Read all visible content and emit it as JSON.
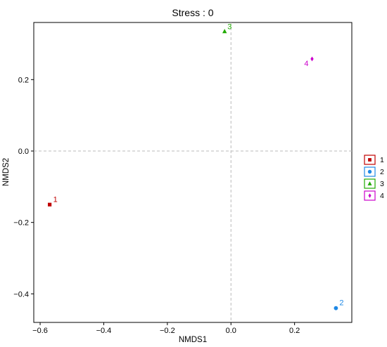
{
  "chart_data": {
    "type": "scatter",
    "title": "Stress : 0",
    "xlabel": "NMDS1",
    "ylabel": "NMDS2",
    "xlim": [
      -0.62,
      0.38
    ],
    "ylim": [
      -0.48,
      0.36
    ],
    "xticks": [
      -0.6,
      -0.4,
      -0.2,
      0.0,
      0.2
    ],
    "xtick_labels": [
      "−0.6",
      "−0.4",
      "−0.2",
      "0.0",
      "0.2"
    ],
    "yticks": [
      -0.4,
      -0.2,
      0.0,
      0.2
    ],
    "ytick_labels": [
      "−0.4",
      "−0.2",
      "0.0",
      "0.2"
    ],
    "grid": false,
    "reference_lines": {
      "x": 0,
      "y": 0,
      "style": "dashed",
      "color": "#bbbbbb"
    },
    "legend": "right",
    "series": [
      {
        "name": "1",
        "color": "#c00000",
        "marker": "square",
        "points": [
          {
            "x": -0.57,
            "y": -0.15
          }
        ],
        "label": "1"
      },
      {
        "name": "2",
        "color": "#1e88e5",
        "marker": "circle",
        "points": [
          {
            "x": 0.33,
            "y": -0.44
          }
        ],
        "label": "2"
      },
      {
        "name": "3",
        "color": "#1faa00",
        "marker": "triangle",
        "points": [
          {
            "x": -0.02,
            "y": 0.335
          }
        ],
        "label": "3"
      },
      {
        "name": "4",
        "color": "#cc00cc",
        "marker": "diamond",
        "points": [
          {
            "x": 0.255,
            "y": 0.258
          }
        ],
        "label": "4"
      }
    ]
  }
}
